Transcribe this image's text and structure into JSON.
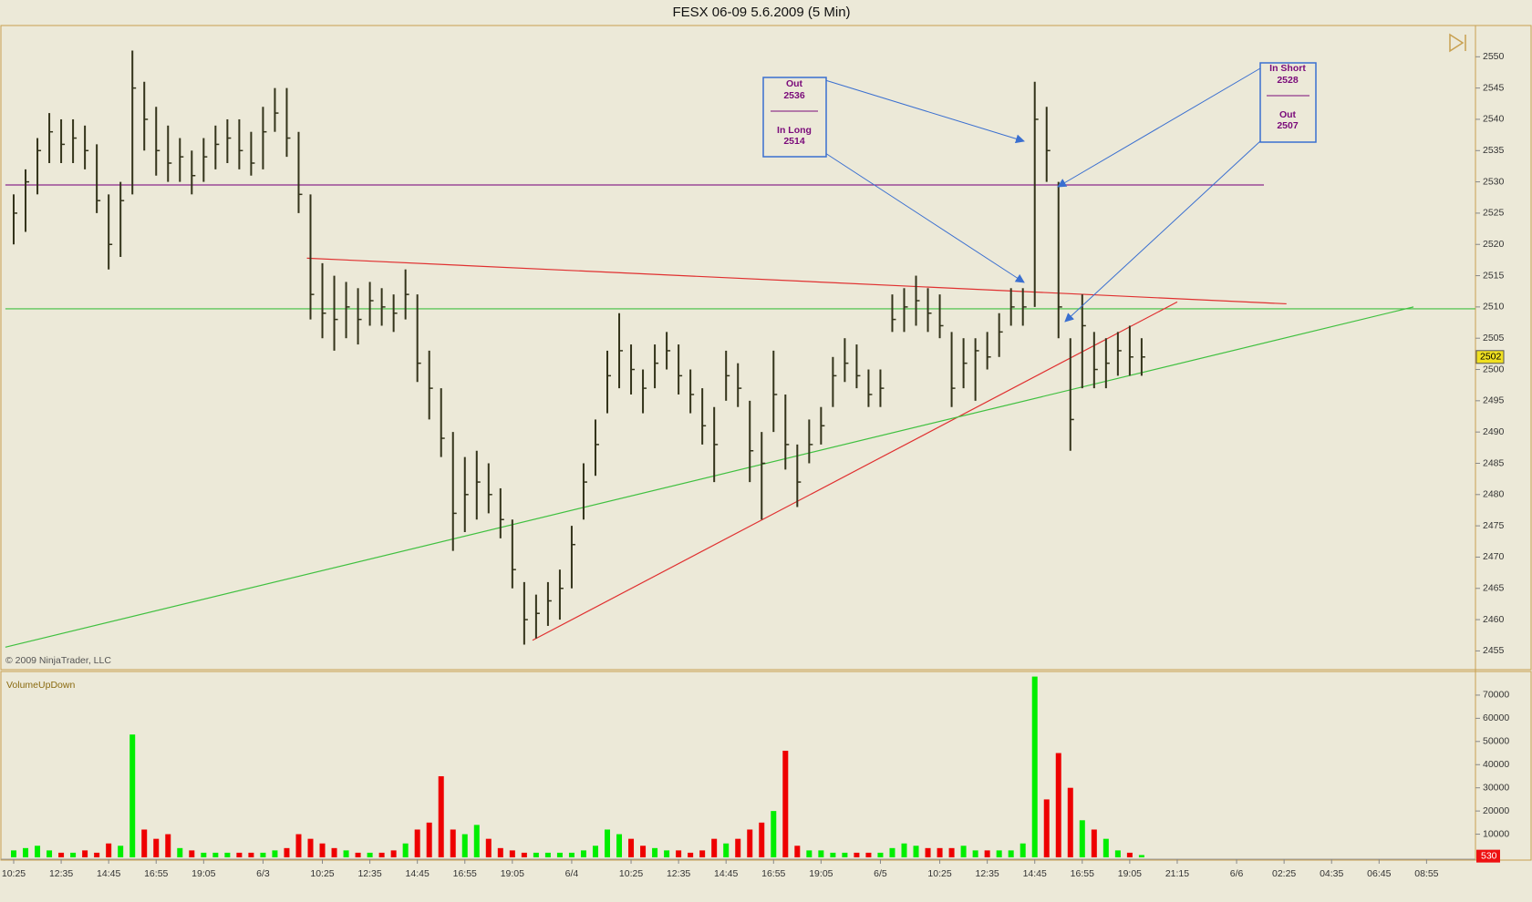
{
  "chart_data": [
    {
      "type": "ohlc",
      "title": "FESX 06-09  5.6.2009 (5 Min)",
      "color": "#33331a",
      "high": [
        2528,
        2532,
        2537,
        2541,
        2540,
        2540,
        2539,
        2536,
        2528,
        2530,
        2551,
        2546,
        2542,
        2539,
        2537,
        2535,
        2537,
        2539,
        2540,
        2540,
        2538,
        2542,
        2545,
        2545,
        2538,
        2528,
        2517,
        2515,
        2514,
        2513,
        2514,
        2513,
        2512,
        2516,
        2512,
        2503,
        2497,
        2490,
        2486,
        2487,
        2485,
        2481,
        2476,
        2466,
        2464,
        2466,
        2468,
        2475,
        2485,
        2492,
        2503,
        2509,
        2504,
        2500,
        2504,
        2506,
        2504,
        2500,
        2497,
        2494,
        2503,
        2501,
        2495,
        2490,
        2503,
        2496,
        2488,
        2492,
        2494,
        2502,
        2505,
        2504,
        2500,
        2500,
        2512,
        2513,
        2515,
        2513,
        2512,
        2506,
        2505,
        2505,
        2506,
        2509,
        2513,
        2513,
        2546,
        2542,
        2530,
        2505,
        2512,
        2506,
        2505,
        2506,
        2507,
        2505,
        null,
        null,
        null,
        null,
        null,
        null,
        null,
        null,
        null,
        null,
        null,
        null,
        null,
        null,
        null,
        null,
        null,
        null,
        null,
        null,
        null,
        null,
        null,
        null
      ],
      "low": [
        2520,
        2522,
        2528,
        2533,
        2533,
        2533,
        2532,
        2525,
        2516,
        2518,
        2528,
        2535,
        2531,
        2530,
        2530,
        2528,
        2530,
        2532,
        2533,
        2532,
        2531,
        2532,
        2538,
        2534,
        2525,
        2508,
        2505,
        2503,
        2505,
        2504,
        2507,
        2507,
        2506,
        2508,
        2498,
        2492,
        2486,
        2471,
        2474,
        2476,
        2477,
        2473,
        2465,
        2456,
        2457,
        2459,
        2460,
        2465,
        2476,
        2483,
        2493,
        2497,
        2496,
        2493,
        2497,
        2500,
        2496,
        2493,
        2488,
        2482,
        2495,
        2494,
        2482,
        2476,
        2490,
        2484,
        2478,
        2485,
        2488,
        2494,
        2498,
        2497,
        2494,
        2494,
        2506,
        2506,
        2507,
        2506,
        2505,
        2494,
        2497,
        2495,
        2500,
        2502,
        2507,
        2507,
        2510,
        2530,
        2505,
        2487,
        2497,
        2497,
        2497,
        2499,
        2499,
        2499,
        null,
        null,
        null,
        null,
        null,
        null,
        null,
        null,
        null,
        null,
        null,
        null,
        null,
        null,
        null,
        null,
        null,
        null,
        null,
        null,
        null,
        null,
        null,
        null
      ],
      "close": [
        2525,
        2530,
        2535,
        2538,
        2536,
        2537,
        2535,
        2527,
        2520,
        2527,
        2545,
        2540,
        2535,
        2533,
        2534,
        2531,
        2534,
        2536,
        2537,
        2535,
        2533,
        2538,
        2541,
        2537,
        2528,
        2512,
        2509,
        2508,
        2510,
        2508,
        2511,
        2510,
        2509,
        2512,
        2501,
        2497,
        2489,
        2477,
        2480,
        2482,
        2480,
        2476,
        2468,
        2460,
        2461,
        2463,
        2465,
        2472,
        2482,
        2488,
        2499,
        2503,
        2500,
        2497,
        2501,
        2503,
        2499,
        2496,
        2491,
        2488,
        2499,
        2497,
        2487,
        2485,
        2496,
        2488,
        2482,
        2488,
        2491,
        2499,
        2501,
        2499,
        2496,
        2497,
        2508,
        2510,
        2511,
        2509,
        2507,
        2497,
        2501,
        2503,
        2502,
        2506,
        2510,
        2510,
        2540,
        2535,
        2510,
        2492,
        2507,
        2500,
        2501,
        2503,
        2502,
        2502,
        null,
        null,
        null,
        null,
        null,
        null,
        null,
        null,
        null,
        null,
        null,
        null,
        null,
        null,
        null,
        null,
        null,
        null,
        null,
        null,
        null,
        null,
        null,
        null
      ],
      "ylim": [
        2452,
        2555
      ],
      "yticks": [
        2455,
        2460,
        2465,
        2470,
        2475,
        2480,
        2485,
        2490,
        2495,
        2500,
        2505,
        2510,
        2515,
        2520,
        2525,
        2530,
        2535,
        2540,
        2545,
        2550
      ],
      "last": 2502,
      "last_color": "#f0e020",
      "copyright": "© 2009 NinjaTrader, LLC",
      "lines": [
        {
          "color": "#8a2a8a",
          "x": [
            -0.7,
            105.3
          ],
          "y": [
            2529.5,
            2529.5
          ]
        },
        {
          "color": "#40c040",
          "x": [
            -0.7,
            123.1
          ],
          "y": [
            2509.7,
            2509.7
          ]
        },
        {
          "color": "#e03030",
          "x": [
            24.7,
            107.2
          ],
          "y": [
            2517.8,
            2510.5
          ]
        },
        {
          "color": "#e03030",
          "x": [
            43.7,
            98.0
          ],
          "y": [
            2456.7,
            2510.8
          ]
        },
        {
          "color": "#40c040",
          "x": [
            -0.7,
            117.9
          ],
          "y": [
            2455.6,
            2510.0
          ]
        }
      ],
      "annotations": [
        {
          "lines": [
            "Out",
            "2536",
            "In Long",
            "2514"
          ]
        },
        {
          "lines": [
            "In Short",
            "2528",
            "Out",
            "2507"
          ]
        }
      ]
    },
    {
      "type": "bar",
      "title": "VolumeUpDown",
      "up_color": "#00ee00",
      "down_color": "#ee0000",
      "categories": [
        "10:25",
        null,
        null,
        null,
        "12:35",
        null,
        null,
        null,
        "14:45",
        null,
        null,
        null,
        "16:55",
        null,
        null,
        null,
        "19:05",
        null,
        null,
        null,
        null,
        "6/3",
        null,
        null,
        null,
        null,
        "10:25",
        null,
        null,
        null,
        "12:35",
        null,
        null,
        null,
        "14:45",
        null,
        null,
        null,
        "16:55",
        null,
        null,
        null,
        "19:05",
        null,
        null,
        null,
        null,
        "6/4",
        null,
        null,
        null,
        null,
        "10:25",
        null,
        null,
        null,
        "12:35",
        null,
        null,
        null,
        "14:45",
        null,
        null,
        null,
        "16:55",
        null,
        null,
        null,
        "19:05",
        null,
        null,
        null,
        null,
        "6/5",
        null,
        null,
        null,
        null,
        "10:25",
        null,
        null,
        null,
        "12:35",
        null,
        null,
        null,
        "14:45",
        null,
        null,
        null,
        "16:55",
        null,
        null,
        null,
        "19:05",
        null,
        null,
        null,
        "21:15",
        null,
        null,
        null,
        null,
        "6/6",
        null,
        null,
        null,
        "02:25",
        null,
        null,
        null,
        "04:35",
        null,
        null,
        null,
        "06:45",
        null,
        null,
        null,
        "08:55"
      ],
      "values": [
        3000,
        4000,
        5000,
        3000,
        2000,
        2000,
        3000,
        2000,
        6000,
        5000,
        53000,
        12000,
        8000,
        10000,
        4000,
        3000,
        2000,
        2000,
        2000,
        2000,
        2000,
        2000,
        3000,
        4000,
        10000,
        8000,
        6000,
        4000,
        3000,
        2000,
        2000,
        2000,
        3000,
        6000,
        12000,
        15000,
        35000,
        12000,
        10000,
        14000,
        8000,
        4000,
        3000,
        2000,
        2000,
        2000,
        2000,
        2000,
        3000,
        5000,
        12000,
        10000,
        8000,
        5000,
        4000,
        3000,
        3000,
        2000,
        3000,
        8000,
        6000,
        8000,
        12000,
        15000,
        20000,
        46000,
        5000,
        3000,
        3000,
        2000,
        2000,
        2000,
        2000,
        2000,
        4000,
        6000,
        5000,
        4000,
        4000,
        4000,
        5000,
        3000,
        3000,
        3000,
        3000,
        6000,
        78000,
        25000,
        45000,
        30000,
        16000,
        12000,
        8000,
        3000,
        2000,
        1000,
        null,
        null,
        null,
        null,
        null,
        null,
        null,
        null,
        null,
        null,
        null,
        null,
        null,
        null,
        null,
        null,
        null,
        null,
        null,
        null,
        null,
        null,
        null,
        null
      ],
      "ylim": [
        0,
        80000
      ],
      "yticks": [
        10000,
        20000,
        30000,
        40000,
        50000,
        60000,
        70000
      ],
      "last": 530,
      "last_color": "#ee1111"
    }
  ]
}
